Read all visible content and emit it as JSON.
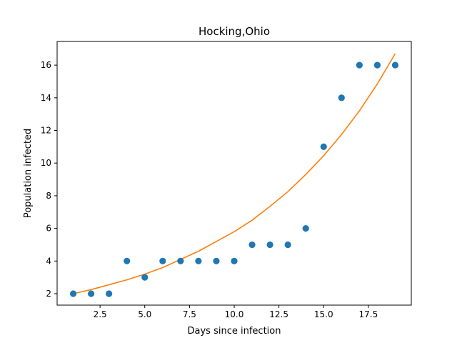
{
  "chart_data": {
    "type": "scatter",
    "title": "Hocking,Ohio",
    "xlabel": "Days since infection",
    "ylabel": "Population infected",
    "xlim": [
      0.1,
      19.9
    ],
    "ylim": [
      1.3,
      17.45
    ],
    "xticks": [
      2.5,
      5.0,
      7.5,
      10.0,
      12.5,
      15.0,
      17.5
    ],
    "xtick_labels": [
      "2.5",
      "5.0",
      "7.5",
      "10.0",
      "12.5",
      "15.0",
      "17.5"
    ],
    "yticks": [
      2,
      4,
      6,
      8,
      10,
      12,
      14,
      16
    ],
    "ytick_labels": [
      "2",
      "4",
      "6",
      "8",
      "10",
      "12",
      "14",
      "16"
    ],
    "grid": false,
    "series": [
      {
        "type": "scatter",
        "color": "#1f77b4",
        "x": [
          1,
          2,
          3,
          4,
          5,
          6,
          7,
          8,
          9,
          10,
          11,
          12,
          13,
          14,
          15,
          16,
          17,
          18,
          19
        ],
        "y": [
          2,
          2,
          2,
          4,
          3,
          4,
          4,
          4,
          4,
          4,
          5,
          5,
          5,
          6,
          11,
          14,
          16,
          16,
          16
        ]
      },
      {
        "type": "line",
        "color": "#ff7f0e",
        "x": [
          1,
          2,
          3,
          4,
          5,
          6,
          7,
          8,
          9,
          10,
          11,
          12,
          13,
          14,
          15,
          16,
          17,
          18,
          19
        ],
        "y": [
          2.0,
          2.25,
          2.55,
          2.85,
          3.2,
          3.6,
          4.1,
          4.6,
          5.2,
          5.8,
          6.5,
          7.35,
          8.25,
          9.3,
          10.45,
          11.75,
          13.2,
          14.85,
          16.7
        ]
      }
    ]
  }
}
